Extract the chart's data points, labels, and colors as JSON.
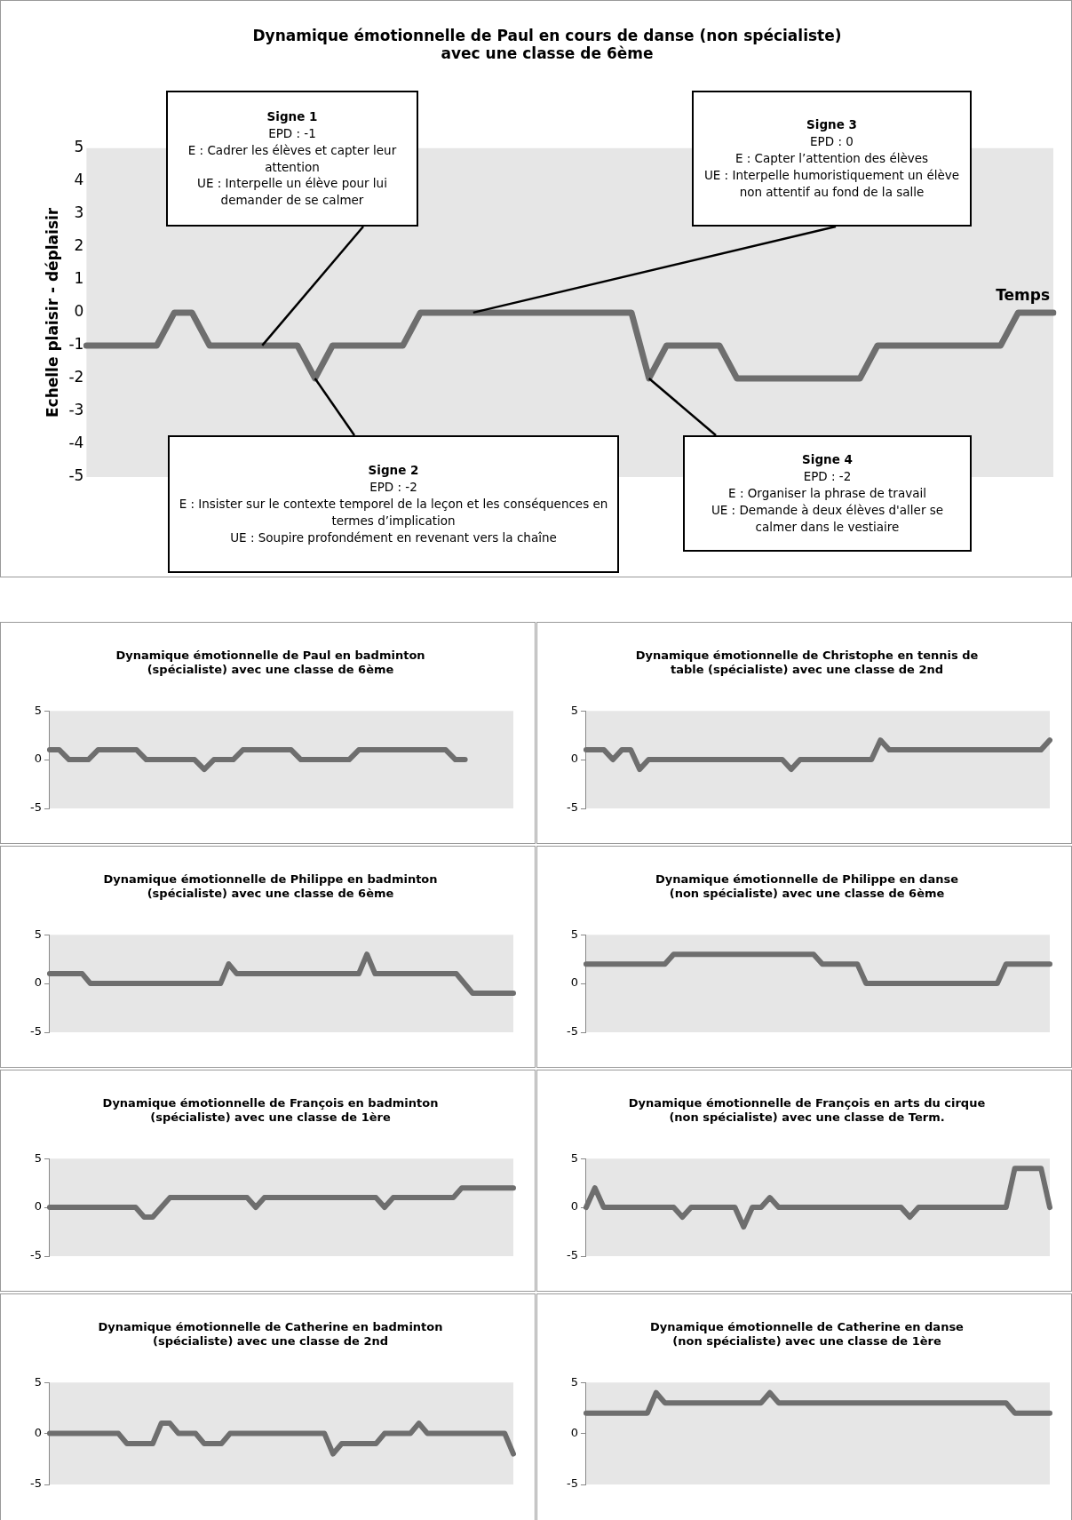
{
  "chart_data": [
    {
      "type": "line",
      "title": "Dynamique émotionnelle de Paul en cours de danse (non spécialiste)\navec une classe de 6ème",
      "xlabel": "Temps",
      "ylabel": "Echelle plaisir - déplaisir",
      "categories": [
        null,
        null,
        null,
        null,
        null,
        null,
        null,
        null,
        null,
        null,
        null,
        null,
        null,
        null,
        null,
        null,
        null,
        null,
        null,
        null,
        null,
        null,
        null,
        null,
        null,
        null,
        null,
        null,
        null,
        null,
        null,
        null,
        null,
        null,
        null,
        null,
        null,
        null,
        null,
        null,
        null,
        null,
        null,
        null,
        null,
        null,
        null,
        null,
        null,
        null,
        null,
        null,
        null,
        null,
        null,
        null
      ],
      "values": [
        -1,
        -1,
        -1,
        -1,
        -1,
        0,
        0,
        -1,
        -1,
        -1,
        -1,
        -1,
        -1,
        -2,
        -1,
        -1,
        -1,
        -1,
        -1,
        0,
        0,
        0,
        0,
        0,
        0,
        0,
        0,
        0,
        0,
        0,
        0,
        0,
        -2,
        -1,
        -1,
        -1,
        -1,
        -2,
        -2,
        -2,
        -2,
        -2,
        -2,
        -2,
        -2,
        -1,
        -1,
        -1,
        -1,
        -1,
        -1,
        -1,
        -1,
        0,
        0,
        0
      ],
      "color": "#6e6e6e",
      "ylim": [
        -5,
        5
      ],
      "yticks": [
        -5,
        -4,
        -3,
        -2,
        -1,
        0,
        1,
        2,
        3,
        4,
        5
      ],
      "tick_labels": "y",
      "annotations": [
        "Signe 1\nEPD : -1\nE : Cadrer les élèves et capter leur attention\nUE : Interpelle un élève pour lui demander de se calmer",
        "Signe 2\nEPD : -2\nE : Insister sur le contexte temporel de la leçon et les conséquences en termes d’implication\nUE : Soupire profondément en revenant vers la chaîne",
        "Signe 3\nEPD : 0\nE : Capter l’attention des élèves\nUE : Interpelle humoristiquement un élève non attentif au fond de la salle",
        "Signe 4\nEPD : -2\nE : Organiser la phrase de travail\nUE : Demande à deux élèves d'aller se calmer dans le vestiaire"
      ]
    },
    {
      "type": "line",
      "title": "Dynamique émotionnelle de Paul en badminton\n(spécialiste) avec une classe de 6ème",
      "categories": [
        null,
        null,
        null,
        null,
        null,
        null,
        null,
        null,
        null,
        null,
        null,
        null,
        null,
        null,
        null,
        null,
        null,
        null,
        null,
        null,
        null,
        null,
        null,
        null,
        null,
        null,
        null,
        null,
        null,
        null,
        null,
        null,
        null,
        null,
        null,
        null,
        null,
        null,
        null,
        null,
        null,
        null,
        null,
        null,
        null,
        null,
        null,
        null,
        null
      ],
      "values": [
        1,
        1,
        0,
        0,
        0,
        1,
        1,
        1,
        1,
        1,
        0,
        0,
        0,
        0,
        0,
        0,
        -1,
        0,
        0,
        0,
        1,
        1,
        1,
        1,
        1,
        1,
        0,
        0,
        0,
        0,
        0,
        0,
        1,
        1,
        1,
        1,
        1,
        1,
        1,
        1,
        1,
        1,
        0,
        0,
        null,
        null,
        null,
        null,
        null
      ],
      "color": "#6e6e6e",
      "ylim": [
        -5,
        5
      ],
      "yticks": [
        -5,
        0,
        5
      ],
      "tick_labels": "y"
    },
    {
      "type": "line",
      "title": "Dynamique émotionnelle de Christophe en tennis de\ntable (spécialiste) avec une classe de 2nd",
      "categories": [
        null,
        null,
        null,
        null,
        null,
        null,
        null,
        null,
        null,
        null,
        null,
        null,
        null,
        null,
        null,
        null,
        null,
        null,
        null,
        null,
        null,
        null,
        null,
        null,
        null,
        null,
        null,
        null,
        null,
        null,
        null,
        null,
        null,
        null,
        null,
        null,
        null,
        null,
        null,
        null,
        null,
        null,
        null,
        null,
        null,
        null,
        null,
        null,
        null,
        null,
        null,
        null,
        null
      ],
      "values": [
        1,
        1,
        1,
        0,
        1,
        1,
        -1,
        0,
        0,
        0,
        0,
        0,
        0,
        0,
        0,
        0,
        0,
        0,
        0,
        0,
        0,
        0,
        0,
        -1,
        0,
        0,
        0,
        0,
        0,
        0,
        0,
        0,
        0,
        2,
        1,
        1,
        1,
        1,
        1,
        1,
        1,
        1,
        1,
        1,
        1,
        1,
        1,
        1,
        1,
        1,
        1,
        1,
        2
      ],
      "color": "#6e6e6e",
      "ylim": [
        -5,
        5
      ],
      "yticks": [
        -5,
        0,
        5
      ],
      "tick_labels": "y"
    },
    {
      "type": "line",
      "title": "Dynamique émotionnelle de Philippe en badminton\n(spécialiste) avec une classe de 6ème",
      "categories": [
        null,
        null,
        null,
        null,
        null,
        null,
        null,
        null,
        null,
        null,
        null,
        null,
        null,
        null,
        null,
        null,
        null,
        null,
        null,
        null,
        null,
        null,
        null,
        null,
        null,
        null,
        null,
        null,
        null,
        null,
        null,
        null,
        null,
        null,
        null,
        null,
        null,
        null,
        null,
        null,
        null,
        null,
        null,
        null,
        null,
        null,
        null,
        null,
        null,
        null,
        null,
        null,
        null,
        null,
        null,
        null,
        null,
        null
      ],
      "values": [
        1,
        1,
        1,
        1,
        1,
        0,
        0,
        0,
        0,
        0,
        0,
        0,
        0,
        0,
        0,
        0,
        0,
        0,
        0,
        0,
        0,
        0,
        2,
        1,
        1,
        1,
        1,
        1,
        1,
        1,
        1,
        1,
        1,
        1,
        1,
        1,
        1,
        1,
        1,
        3,
        1,
        1,
        1,
        1,
        1,
        1,
        1,
        1,
        1,
        1,
        1,
        0,
        -1,
        -1,
        -1,
        -1,
        -1,
        -1
      ],
      "color": "#6e6e6e",
      "ylim": [
        -5,
        5
      ],
      "yticks": [
        -5,
        0,
        5
      ],
      "tick_labels": "y"
    },
    {
      "type": "line",
      "title": "Dynamique émotionnelle de Philippe en danse\n(non spécialiste) avec une classe de 6ème",
      "categories": [
        null,
        null,
        null,
        null,
        null,
        null,
        null,
        null,
        null,
        null,
        null,
        null,
        null,
        null,
        null,
        null,
        null,
        null,
        null,
        null,
        null,
        null,
        null,
        null,
        null,
        null,
        null,
        null,
        null,
        null,
        null,
        null,
        null,
        null,
        null,
        null,
        null,
        null,
        null,
        null,
        null,
        null,
        null,
        null,
        null,
        null,
        null,
        null,
        null,
        null,
        null,
        null,
        null,
        null
      ],
      "values": [
        2,
        2,
        2,
        2,
        2,
        2,
        2,
        2,
        2,
        2,
        3,
        3,
        3,
        3,
        3,
        3,
        3,
        3,
        3,
        3,
        3,
        3,
        3,
        3,
        3,
        3,
        3,
        2,
        2,
        2,
        2,
        2,
        0,
        0,
        0,
        0,
        0,
        0,
        0,
        0,
        0,
        0,
        0,
        0,
        0,
        0,
        0,
        0,
        2,
        2,
        2,
        2,
        2,
        2
      ],
      "color": "#6e6e6e",
      "ylim": [
        -5,
        5
      ],
      "yticks": [
        -5,
        0,
        5
      ],
      "tick_labels": "y"
    },
    {
      "type": "line",
      "title": "Dynamique émotionnelle de François en badminton\n(spécialiste) avec une classe de 1ère",
      "categories": [
        null,
        null,
        null,
        null,
        null,
        null,
        null,
        null,
        null,
        null,
        null,
        null,
        null,
        null,
        null,
        null,
        null,
        null,
        null,
        null,
        null,
        null,
        null,
        null,
        null,
        null,
        null,
        null,
        null,
        null,
        null,
        null,
        null,
        null,
        null,
        null,
        null,
        null,
        null,
        null,
        null,
        null,
        null,
        null,
        null,
        null,
        null,
        null,
        null,
        null,
        null,
        null,
        null,
        null,
        null
      ],
      "values": [
        0,
        0,
        0,
        0,
        0,
        0,
        0,
        0,
        0,
        0,
        0,
        -1,
        -1,
        0,
        1,
        1,
        1,
        1,
        1,
        1,
        1,
        1,
        1,
        1,
        0,
        1,
        1,
        1,
        1,
        1,
        1,
        1,
        1,
        1,
        1,
        1,
        1,
        1,
        1,
        0,
        1,
        1,
        1,
        1,
        1,
        1,
        1,
        1,
        2,
        2,
        2,
        2,
        2,
        2,
        2
      ],
      "color": "#6e6e6e",
      "ylim": [
        -5,
        5
      ],
      "yticks": [
        -5,
        0,
        5
      ],
      "tick_labels": "y"
    },
    {
      "type": "line",
      "title": "Dynamique émotionnelle de François en arts du cirque\n(non spécialiste) avec une classe de Term.",
      "categories": [
        null,
        null,
        null,
        null,
        null,
        null,
        null,
        null,
        null,
        null,
        null,
        null,
        null,
        null,
        null,
        null,
        null,
        null,
        null,
        null,
        null,
        null,
        null,
        null,
        null,
        null,
        null,
        null,
        null,
        null,
        null,
        null,
        null,
        null,
        null,
        null,
        null,
        null,
        null,
        null,
        null,
        null,
        null,
        null,
        null,
        null,
        null,
        null,
        null,
        null,
        null,
        null,
        null,
        null
      ],
      "values": [
        0,
        2,
        0,
        0,
        0,
        0,
        0,
        0,
        0,
        0,
        0,
        -1,
        0,
        0,
        0,
        0,
        0,
        0,
        -2,
        0,
        0,
        1,
        0,
        0,
        0,
        0,
        0,
        0,
        0,
        0,
        0,
        0,
        0,
        0,
        0,
        0,
        0,
        -1,
        0,
        0,
        0,
        0,
        0,
        0,
        0,
        0,
        0,
        0,
        0,
        4,
        4,
        4,
        4,
        0
      ],
      "color": "#6e6e6e",
      "ylim": [
        -5,
        5
      ],
      "yticks": [
        -5,
        0,
        5
      ],
      "tick_labels": "y"
    },
    {
      "type": "line",
      "title": "Dynamique émotionnelle de Catherine en badminton\n(spécialiste) avec une classe de 2nd",
      "categories": [
        null,
        null,
        null,
        null,
        null,
        null,
        null,
        null,
        null,
        null,
        null,
        null,
        null,
        null,
        null,
        null,
        null,
        null,
        null,
        null,
        null,
        null,
        null,
        null,
        null,
        null,
        null,
        null,
        null,
        null,
        null,
        null,
        null,
        null,
        null,
        null,
        null,
        null,
        null,
        null,
        null,
        null,
        null,
        null,
        null,
        null,
        null,
        null,
        null,
        null,
        null,
        null,
        null,
        null,
        null
      ],
      "values": [
        0,
        0,
        0,
        0,
        0,
        0,
        0,
        0,
        0,
        -1,
        -1,
        -1,
        -1,
        1,
        1,
        0,
        0,
        0,
        -1,
        -1,
        -1,
        0,
        0,
        0,
        0,
        0,
        0,
        0,
        0,
        0,
        0,
        0,
        0,
        -2,
        -1,
        -1,
        -1,
        -1,
        -1,
        0,
        0,
        0,
        0,
        1,
        0,
        0,
        0,
        0,
        0,
        0,
        0,
        0,
        0,
        0,
        -2
      ],
      "color": "#6e6e6e",
      "ylim": [
        -5,
        5
      ],
      "yticks": [
        -5,
        0,
        5
      ],
      "tick_labels": "y"
    },
    {
      "type": "line",
      "title": "Dynamique émotionnelle de Catherine en danse\n(non spécialiste) avec une classe de 1ère",
      "categories": [
        null,
        null,
        null,
        null,
        null,
        null,
        null,
        null,
        null,
        null,
        null,
        null,
        null,
        null,
        null,
        null,
        null,
        null,
        null,
        null,
        null,
        null,
        null,
        null,
        null,
        null,
        null,
        null,
        null,
        null,
        null,
        null,
        null,
        null,
        null,
        null,
        null,
        null,
        null,
        null,
        null,
        null,
        null,
        null,
        null,
        null,
        null,
        null,
        null,
        null,
        null,
        null,
        null,
        null
      ],
      "values": [
        2,
        2,
        2,
        2,
        2,
        2,
        2,
        2,
        4,
        3,
        3,
        3,
        3,
        3,
        3,
        3,
        3,
        3,
        3,
        3,
        3,
        4,
        3,
        3,
        3,
        3,
        3,
        3,
        3,
        3,
        3,
        3,
        3,
        3,
        3,
        3,
        3,
        3,
        3,
        3,
        3,
        3,
        3,
        3,
        3,
        3,
        3,
        3,
        3,
        2,
        2,
        2,
        2,
        2
      ],
      "color": "#6e6e6e",
      "ylim": [
        -5,
        5
      ],
      "yticks": [
        -5,
        0,
        5
      ],
      "tick_labels": "y"
    }
  ]
}
